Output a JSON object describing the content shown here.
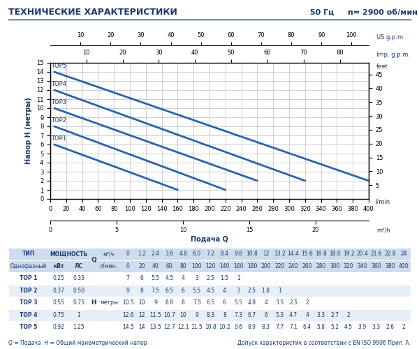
{
  "header": {
    "title": "ТЕХНИЧЕСКИЕ ХАРАКТЕРИСТИКИ",
    "frequency": "50 Гц",
    "speed": "n= 2900 об/мин"
  },
  "chart_data": {
    "type": "line",
    "x_label": "Подача Q",
    "y_label": "Напор H (метры)",
    "x_unit": "l/min",
    "xlim": [
      0,
      400
    ],
    "xticks": [
      0,
      20,
      40,
      60,
      80,
      100,
      120,
      140,
      160,
      180,
      200,
      220,
      240,
      260,
      280,
      300,
      320,
      340,
      360,
      380,
      400
    ],
    "ylim": [
      0,
      15
    ],
    "yticks": [
      0,
      1,
      2,
      3,
      4,
      5,
      6,
      7,
      8,
      9,
      10,
      11,
      12,
      13,
      14,
      15
    ],
    "y2label": "feet",
    "y2lim": [
      0,
      49.2
    ],
    "y2ticks": [
      5,
      10,
      15,
      20,
      25,
      30,
      35,
      40,
      45
    ],
    "top_axes": [
      {
        "label": "US g.p.m.",
        "xlim": [
          0,
          105.7
        ],
        "xticks": [
          10,
          20,
          30,
          40,
          50,
          60,
          70,
          80,
          90,
          100
        ]
      },
      {
        "label": "Imp. g.p.m.",
        "xlim": [
          0,
          88.0
        ],
        "xticks": [
          10,
          20,
          30,
          40,
          50,
          60,
          70,
          80
        ]
      }
    ],
    "bottom_axis2": {
      "label": "m³/h",
      "xlim": [
        0,
        24
      ],
      "xticks": [
        0,
        5,
        10,
        15,
        20
      ]
    },
    "grid": true,
    "series": [
      {
        "name": "TOP1",
        "color": "#2b63a8",
        "x": [
          5,
          160
        ],
        "values": [
          6,
          1
        ]
      },
      {
        "name": "TOP2",
        "color": "#2b63a8",
        "x": [
          5,
          220
        ],
        "values": [
          8,
          1
        ]
      },
      {
        "name": "TOP3",
        "color": "#2b63a8",
        "x": [
          5,
          260
        ],
        "values": [
          10,
          2
        ]
      },
      {
        "name": "TOP4",
        "color": "#2b63a8",
        "x": [
          5,
          320
        ],
        "values": [
          12,
          2
        ]
      },
      {
        "name": "TOP5",
        "color": "#2b63a8",
        "x": [
          5,
          400
        ],
        "values": [
          14,
          2
        ]
      }
    ]
  },
  "table": {
    "header": [
      "ТИП",
      "МОЩНОСТЬ"
    ],
    "subheader": [
      "Однофазный",
      "кВт",
      "ЛС"
    ],
    "q_label": "Q",
    "q_units": [
      "м³/ч.",
      "л/мин."
    ],
    "h_label": "H",
    "h_unit": "метры",
    "q_m3h": [
      0,
      1.2,
      2.4,
      3.6,
      4.8,
      6.0,
      7.2,
      8.4,
      9.6,
      10.8,
      12,
      13.2,
      14.4,
      15.6,
      16.8,
      18.0,
      19.2,
      20.4,
      21.6,
      22.8,
      24
    ],
    "q_lmin": [
      0,
      20,
      40,
      60,
      80,
      100,
      120,
      140,
      160,
      180,
      200,
      220,
      240,
      260,
      280,
      300,
      320,
      340,
      360,
      380,
      400
    ],
    "rows": [
      {
        "type": "TOP 1",
        "kw": "0.25",
        "hp": "0.33",
        "h": [
          7,
          6,
          5.5,
          4.5,
          4,
          3,
          2.5,
          1.5,
          1
        ]
      },
      {
        "type": "TOP 2",
        "kw": "0.37",
        "hp": "0.50",
        "h": [
          9,
          8,
          7.5,
          6.5,
          6,
          5.5,
          4.5,
          4,
          3,
          2.5,
          1.8,
          1
        ]
      },
      {
        "type": "TOP 3",
        "kw": "0.55",
        "hp": "0.75",
        "h": [
          10.5,
          10,
          9,
          8.8,
          8,
          7.5,
          6.5,
          6,
          5.5,
          4.8,
          4,
          3.5,
          2.5,
          2
        ]
      },
      {
        "type": "TOP 4",
        "kw": "0.75",
        "hp": "1",
        "h": [
          12.6,
          12,
          11.5,
          10.7,
          10,
          9,
          8.3,
          8,
          7.3,
          6.7,
          6,
          5.3,
          4.7,
          4,
          3.3,
          2.7,
          2
        ]
      },
      {
        "type": "TOP 5",
        "kw": "0.92",
        "hp": "1.25",
        "h": [
          14.5,
          14,
          13.5,
          12.7,
          12.1,
          11.5,
          10.8,
          10.2,
          9.6,
          8.9,
          8.3,
          7.7,
          7.1,
          6.4,
          5.8,
          5.2,
          4.5,
          3.9,
          3.3,
          2.6,
          2
        ]
      }
    ]
  },
  "footer": [
    "Q = Подача  H = Общий манометрический напор",
    "Допуск характеристик в соответствии с EN ISO 9906 Прил. A."
  ]
}
